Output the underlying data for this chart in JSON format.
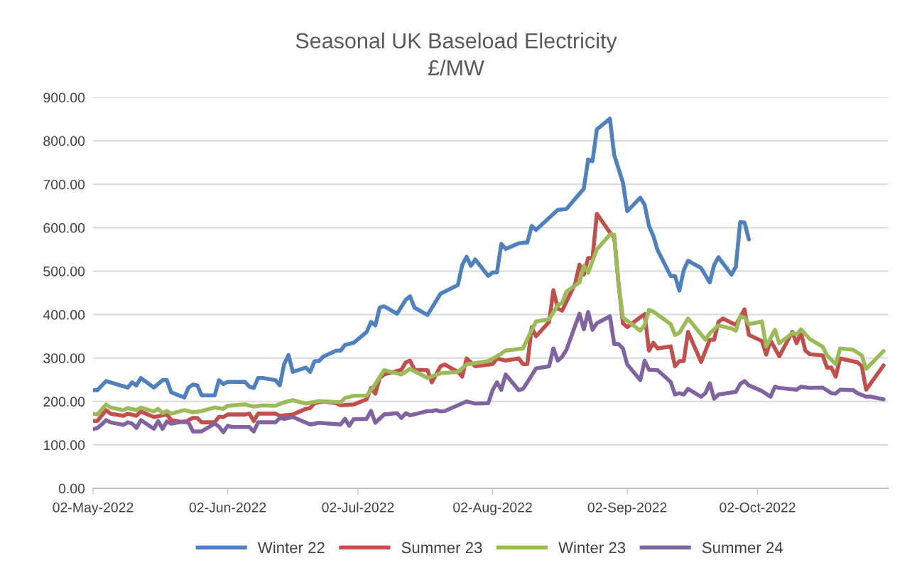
{
  "chart_data": {
    "type": "line",
    "title": "Seasonal UK Baseload Electricity",
    "subtitle": "£/MW",
    "xlim": [
      "2022-05-02",
      "2022-11-01"
    ],
    "xticks": [
      {
        "value": "2022-05-02",
        "label": "02-May-2022"
      },
      {
        "value": "2022-06-02",
        "label": "02-Jun-2022"
      },
      {
        "value": "2022-07-02",
        "label": "02-Jul-2022"
      },
      {
        "value": "2022-08-02",
        "label": "02-Aug-2022"
      },
      {
        "value": "2022-09-02",
        "label": "02-Sep-2022"
      },
      {
        "value": "2022-10-02",
        "label": "02-Oct-2022"
      }
    ],
    "ylim": [
      0,
      900
    ],
    "yticks": [
      {
        "value": 0,
        "label": "0.00"
      },
      {
        "value": 100,
        "label": "100.00"
      },
      {
        "value": 200,
        "label": "200.00"
      },
      {
        "value": 300,
        "label": "300.00"
      },
      {
        "value": 400,
        "label": "400.00"
      },
      {
        "value": 500,
        "label": "500.00"
      },
      {
        "value": 600,
        "label": "600.00"
      },
      {
        "value": 700,
        "label": "700.00"
      },
      {
        "value": 800,
        "label": "800.00"
      },
      {
        "value": 900,
        "label": "900.00"
      }
    ],
    "grid": "y",
    "legend": "bottom",
    "marker": "none",
    "line_style": "solid",
    "series": [
      {
        "name": "Winter 22",
        "color": "#4f81bd",
        "x": [
          "2022-05-02",
          "2022-05-03",
          "2022-05-05",
          "2022-05-10",
          "2022-05-11",
          "2022-05-12",
          "2022-05-13",
          "2022-05-16",
          "2022-05-18",
          "2022-05-19",
          "2022-05-20",
          "2022-05-23",
          "2022-05-24",
          "2022-05-25",
          "2022-05-26",
          "2022-05-27",
          "2022-05-30",
          "2022-05-31",
          "2022-06-01",
          "2022-06-02",
          "2022-06-06",
          "2022-06-07",
          "2022-06-08",
          "2022-06-09",
          "2022-06-10",
          "2022-06-13",
          "2022-06-14",
          "2022-06-15",
          "2022-06-16",
          "2022-06-17",
          "2022-06-20",
          "2022-06-21",
          "2022-06-22",
          "2022-06-23",
          "2022-06-24",
          "2022-06-27",
          "2022-06-28",
          "2022-06-29",
          "2022-07-01",
          "2022-07-04",
          "2022-07-05",
          "2022-07-06",
          "2022-07-07",
          "2022-07-08",
          "2022-07-11",
          "2022-07-13",
          "2022-07-14",
          "2022-07-15",
          "2022-07-18",
          "2022-07-21",
          "2022-07-25",
          "2022-07-26",
          "2022-07-27",
          "2022-07-28",
          "2022-07-29",
          "2022-08-01",
          "2022-08-02",
          "2022-08-03",
          "2022-08-04",
          "2022-08-05",
          "2022-08-08",
          "2022-08-10",
          "2022-08-11",
          "2022-08-12",
          "2022-08-17",
          "2022-08-19",
          "2022-08-23",
          "2022-08-24",
          "2022-08-25",
          "2022-08-26",
          "2022-08-29",
          "2022-08-30",
          "2022-09-01",
          "2022-09-02",
          "2022-09-05",
          "2022-09-06",
          "2022-09-07",
          "2022-09-08",
          "2022-09-09",
          "2022-09-12",
          "2022-09-13",
          "2022-09-14",
          "2022-09-15",
          "2022-09-16",
          "2022-09-19",
          "2022-09-21",
          "2022-09-22",
          "2022-09-23",
          "2022-09-26",
          "2022-09-27",
          "2022-09-28",
          "2022-09-29",
          "2022-09-30"
        ],
        "values": [
          226,
          226,
          247,
          232,
          244,
          237,
          254,
          232,
          249,
          249,
          221,
          209,
          232,
          239,
          237,
          214,
          214,
          249,
          240,
          245,
          245,
          234,
          231,
          254,
          254,
          249,
          237,
          286,
          307,
          268,
          278,
          268,
          293,
          293,
          303,
          317,
          317,
          330,
          335,
          360,
          383,
          375,
          416,
          419,
          402,
          434,
          442,
          416,
          399,
          448,
          468,
          514,
          533,
          512,
          527,
          489,
          497,
          497,
          563,
          551,
          564,
          566,
          604,
          595,
          641,
          643,
          690,
          757,
          753,
          826,
          851,
          767,
          704,
          638,
          669,
          653,
          604,
          581,
          548,
          489,
          489,
          455,
          502,
          524,
          507,
          474,
          514,
          532,
          492,
          510,
          613,
          612,
          573
        ]
      },
      {
        "name": "Summer 23",
        "color": "#c0504d",
        "x": [
          "2022-05-02",
          "2022-05-03",
          "2022-05-05",
          "2022-05-06",
          "2022-05-09",
          "2022-05-10",
          "2022-05-12",
          "2022-05-13",
          "2022-05-16",
          "2022-05-19",
          "2022-05-20",
          "2022-05-23",
          "2022-05-25",
          "2022-05-26",
          "2022-05-27",
          "2022-05-30",
          "2022-05-31",
          "2022-06-01",
          "2022-06-02",
          "2022-06-06",
          "2022-06-07",
          "2022-06-08",
          "2022-06-09",
          "2022-06-13",
          "2022-06-14",
          "2022-06-17",
          "2022-06-20",
          "2022-06-21",
          "2022-06-22",
          "2022-06-24",
          "2022-06-27",
          "2022-06-28",
          "2022-07-01",
          "2022-07-04",
          "2022-07-05",
          "2022-07-06",
          "2022-07-07",
          "2022-07-08",
          "2022-07-12",
          "2022-07-13",
          "2022-07-14",
          "2022-07-15",
          "2022-07-18",
          "2022-07-19",
          "2022-07-21",
          "2022-07-22",
          "2022-07-25",
          "2022-07-26",
          "2022-07-27",
          "2022-07-29",
          "2022-08-02",
          "2022-08-03",
          "2022-08-05",
          "2022-08-08",
          "2022-08-09",
          "2022-08-10",
          "2022-08-11",
          "2022-08-12",
          "2022-08-15",
          "2022-08-16",
          "2022-08-17",
          "2022-08-18",
          "2022-08-21",
          "2022-08-22",
          "2022-08-23",
          "2022-08-24",
          "2022-08-25",
          "2022-08-26",
          "2022-08-29",
          "2022-08-30",
          "2022-08-31",
          "2022-09-01",
          "2022-09-02",
          "2022-09-05",
          "2022-09-06",
          "2022-09-07",
          "2022-09-08",
          "2022-09-09",
          "2022-09-12",
          "2022-09-13",
          "2022-09-14",
          "2022-09-15",
          "2022-09-16",
          "2022-09-19",
          "2022-09-21",
          "2022-09-22",
          "2022-09-23",
          "2022-09-24",
          "2022-09-27",
          "2022-09-29",
          "2022-09-30",
          "2022-10-03",
          "2022-10-04",
          "2022-10-05",
          "2022-10-07",
          "2022-10-10",
          "2022-10-11",
          "2022-10-12",
          "2022-10-13",
          "2022-10-14",
          "2022-10-17",
          "2022-10-18",
          "2022-10-19",
          "2022-10-20",
          "2022-10-21",
          "2022-10-25",
          "2022-10-26",
          "2022-10-27",
          "2022-10-31"
        ],
        "values": [
          155,
          155,
          180,
          172,
          167,
          172,
          167,
          177,
          164,
          170,
          157,
          152,
          162,
          162,
          152,
          152,
          165,
          164,
          170,
          170,
          172,
          155,
          172,
          172,
          167,
          170,
          183,
          185,
          196,
          200,
          196,
          191,
          193,
          205,
          231,
          218,
          254,
          262,
          273,
          290,
          294,
          273,
          272,
          244,
          281,
          285,
          268,
          257,
          299,
          281,
          286,
          299,
          294,
          299,
          286,
          286,
          371,
          350,
          383,
          456,
          414,
          409,
          471,
          515,
          492,
          530,
          530,
          632,
          589,
          578,
          470,
          380,
          371,
          394,
          401,
          317,
          335,
          322,
          327,
          281,
          293,
          293,
          360,
          291,
          342,
          342,
          383,
          391,
          376,
          412,
          353,
          339,
          308,
          340,
          304,
          360,
          334,
          358,
          317,
          309,
          306,
          278,
          278,
          257,
          299,
          290,
          281,
          227,
          283
        ]
      },
      {
        "name": "Winter 23",
        "color": "#9bbb59",
        "x": [
          "2022-05-02",
          "2022-05-03",
          "2022-05-05",
          "2022-05-06",
          "2022-05-09",
          "2022-05-10",
          "2022-05-12",
          "2022-05-13",
          "2022-05-16",
          "2022-05-17",
          "2022-05-18",
          "2022-05-19",
          "2022-05-20",
          "2022-05-23",
          "2022-05-25",
          "2022-05-27",
          "2022-05-30",
          "2022-06-01",
          "2022-06-02",
          "2022-06-06",
          "2022-06-08",
          "2022-06-10",
          "2022-06-13",
          "2022-06-15",
          "2022-06-17",
          "2022-06-20",
          "2022-06-23",
          "2022-06-28",
          "2022-06-29",
          "2022-07-01",
          "2022-07-04",
          "2022-07-06",
          "2022-07-08",
          "2022-07-12",
          "2022-07-14",
          "2022-07-18",
          "2022-07-21",
          "2022-07-25",
          "2022-07-27",
          "2022-08-01",
          "2022-08-03",
          "2022-08-05",
          "2022-08-09",
          "2022-08-10",
          "2022-08-12",
          "2022-08-15",
          "2022-08-17",
          "2022-08-18",
          "2022-08-19",
          "2022-08-22",
          "2022-08-23",
          "2022-08-24",
          "2022-08-26",
          "2022-08-29",
          "2022-08-30",
          "2022-08-31",
          "2022-09-01",
          "2022-09-05",
          "2022-09-06",
          "2022-09-07",
          "2022-09-08",
          "2022-09-12",
          "2022-09-13",
          "2022-09-14",
          "2022-09-16",
          "2022-09-20",
          "2022-09-21",
          "2022-09-23",
          "2022-09-26",
          "2022-09-27",
          "2022-09-28",
          "2022-09-29",
          "2022-09-30",
          "2022-10-03",
          "2022-10-04",
          "2022-10-06",
          "2022-10-07",
          "2022-10-10",
          "2022-10-11",
          "2022-10-12",
          "2022-10-14",
          "2022-10-17",
          "2022-10-18",
          "2022-10-20",
          "2022-10-21",
          "2022-10-24",
          "2022-10-26",
          "2022-10-27",
          "2022-10-31"
        ],
        "values": [
          172,
          170,
          193,
          186,
          180,
          185,
          180,
          186,
          177,
          183,
          173,
          178,
          172,
          180,
          175,
          178,
          186,
          183,
          190,
          193,
          188,
          191,
          190,
          198,
          203,
          195,
          201,
          198,
          208,
          213,
          213,
          240,
          272,
          262,
          275,
          254,
          265,
          268,
          285,
          293,
          304,
          317,
          322,
          344,
          384,
          389,
          422,
          427,
          453,
          474,
          512,
          496,
          550,
          584,
          584,
          470,
          393,
          363,
          376,
          411,
          407,
          378,
          353,
          358,
          391,
          342,
          357,
          375,
          368,
          363,
          396,
          393,
          378,
          384,
          327,
          365,
          334,
          357,
          355,
          366,
          344,
          326,
          306,
          286,
          322,
          319,
          306,
          275,
          316
        ]
      },
      {
        "name": "Summer 24",
        "color": "#8064a2",
        "x": [
          "2022-05-02",
          "2022-05-03",
          "2022-05-04",
          "2022-05-05",
          "2022-05-06",
          "2022-05-09",
          "2022-05-10",
          "2022-05-11",
          "2022-05-12",
          "2022-05-13",
          "2022-05-16",
          "2022-05-17",
          "2022-05-18",
          "2022-05-19",
          "2022-05-20",
          "2022-05-23",
          "2022-05-24",
          "2022-05-25",
          "2022-05-27",
          "2022-05-30",
          "2022-05-31",
          "2022-06-01",
          "2022-06-02",
          "2022-06-03",
          "2022-06-07",
          "2022-06-08",
          "2022-06-09",
          "2022-06-13",
          "2022-06-14",
          "2022-06-15",
          "2022-06-17",
          "2022-06-21",
          "2022-06-23",
          "2022-06-28",
          "2022-06-29",
          "2022-06-30",
          "2022-07-01",
          "2022-07-04",
          "2022-07-05",
          "2022-07-06",
          "2022-07-08",
          "2022-07-11",
          "2022-07-12",
          "2022-07-13",
          "2022-07-14",
          "2022-07-18",
          "2022-07-19",
          "2022-07-20",
          "2022-07-21",
          "2022-07-22",
          "2022-07-27",
          "2022-07-29",
          "2022-08-01",
          "2022-08-02",
          "2022-08-03",
          "2022-08-04",
          "2022-08-05",
          "2022-08-08",
          "2022-08-09",
          "2022-08-10",
          "2022-08-12",
          "2022-08-15",
          "2022-08-16",
          "2022-08-17",
          "2022-08-18",
          "2022-08-19",
          "2022-08-22",
          "2022-08-23",
          "2022-08-24",
          "2022-08-25",
          "2022-08-26",
          "2022-08-29",
          "2022-08-30",
          "2022-08-31",
          "2022-09-01",
          "2022-09-02",
          "2022-09-05",
          "2022-09-06",
          "2022-09-07",
          "2022-09-09",
          "2022-09-12",
          "2022-09-13",
          "2022-09-14",
          "2022-09-15",
          "2022-09-16",
          "2022-09-19",
          "2022-09-20",
          "2022-09-21",
          "2022-09-22",
          "2022-09-23",
          "2022-09-27",
          "2022-09-28",
          "2022-09-29",
          "2022-09-30",
          "2022-10-03",
          "2022-10-05",
          "2022-10-06",
          "2022-10-07",
          "2022-10-11",
          "2022-10-12",
          "2022-10-14",
          "2022-10-17",
          "2022-10-19",
          "2022-10-20",
          "2022-10-21",
          "2022-10-24",
          "2022-10-25",
          "2022-10-27",
          "2022-10-28",
          "2022-10-31"
        ],
        "values": [
          136,
          139,
          147,
          157,
          152,
          146,
          152,
          149,
          139,
          157,
          137,
          155,
          137,
          154,
          149,
          154,
          151,
          131,
          131,
          149,
          142,
          129,
          144,
          141,
          141,
          131,
          152,
          152,
          162,
          160,
          164,
          147,
          151,
          147,
          160,
          144,
          159,
          160,
          178,
          151,
          170,
          173,
          162,
          173,
          168,
          178,
          178,
          180,
          177,
          178,
          200,
          195,
          196,
          226,
          244,
          227,
          262,
          226,
          229,
          244,
          276,
          281,
          322,
          294,
          303,
          319,
          402,
          366,
          406,
          365,
          380,
          396,
          332,
          332,
          322,
          285,
          249,
          294,
          273,
          272,
          245,
          216,
          219,
          216,
          229,
          211,
          219,
          242,
          206,
          216,
          222,
          240,
          247,
          237,
          224,
          211,
          234,
          231,
          227,
          234,
          231,
          232,
          219,
          218,
          227,
          226,
          219,
          211,
          211,
          205
        ]
      }
    ]
  }
}
